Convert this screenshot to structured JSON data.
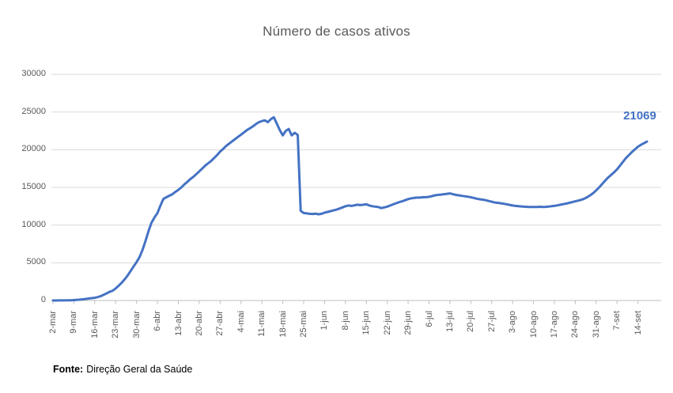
{
  "chart_data": {
    "type": "line",
    "title": "Número de casos ativos",
    "series_name": "casos ativos",
    "line_color": "#4472C4",
    "grid": true,
    "legend": "none",
    "ylim": [
      0,
      30000
    ],
    "y_ticks": [
      0,
      5000,
      10000,
      15000,
      20000,
      25000,
      30000
    ],
    "x_tick_every_n_points": 7,
    "x_tick_labels": [
      "2-mar",
      "9-mar",
      "16-mar",
      "23-mar",
      "30-mar",
      "6-abr",
      "13-abr",
      "20-abr",
      "27-abr",
      "4-mai",
      "11-mai",
      "18-mai",
      "25-mai",
      "1-jun",
      "8-jun",
      "15-jun",
      "22-jun",
      "29-jun",
      "6-jul",
      "13-jul",
      "20-jul",
      "27-jul",
      "3-ago",
      "10-ago",
      "17-ago",
      "24-ago",
      "31-ago",
      "7-set",
      "14-set"
    ],
    "end_label": "21069",
    "values": [
      2,
      3,
      6,
      10,
      15,
      22,
      35,
      55,
      80,
      120,
      160,
      210,
      260,
      310,
      360,
      450,
      580,
      760,
      950,
      1150,
      1300,
      1600,
      1950,
      2350,
      2800,
      3300,
      3900,
      4500,
      5100,
      5750,
      6700,
      7900,
      9200,
      10300,
      11000,
      11600,
      12600,
      13470,
      13700,
      13900,
      14100,
      14400,
      14670,
      15000,
      15400,
      15720,
      16100,
      16400,
      16750,
      17120,
      17500,
      17900,
      18200,
      18500,
      18900,
      19300,
      19740,
      20100,
      20500,
      20800,
      21100,
      21400,
      21700,
      22000,
      22300,
      22600,
      22850,
      23100,
      23400,
      23650,
      23800,
      23900,
      23650,
      24050,
      24300,
      23450,
      22600,
      21900,
      22500,
      22750,
      21900,
      22250,
      21950,
      11900,
      11600,
      11550,
      11500,
      11480,
      11520,
      11430,
      11500,
      11650,
      11750,
      11850,
      11950,
      12050,
      12200,
      12350,
      12500,
      12600,
      12550,
      12620,
      12700,
      12650,
      12700,
      12750,
      12600,
      12500,
      12450,
      12400,
      12250,
      12350,
      12450,
      12600,
      12750,
      12900,
      13050,
      13150,
      13300,
      13450,
      13550,
      13600,
      13650,
      13650,
      13700,
      13700,
      13750,
      13850,
      13950,
      14000,
      14050,
      14100,
      14150,
      14200,
      14100,
      14000,
      13950,
      13880,
      13820,
      13760,
      13700,
      13600,
      13500,
      13430,
      13370,
      13300,
      13200,
      13100,
      13000,
      12950,
      12900,
      12830,
      12770,
      12680,
      12600,
      12550,
      12500,
      12470,
      12440,
      12420,
      12410,
      12400,
      12410,
      12430,
      12400,
      12420,
      12450,
      12500,
      12550,
      12620,
      12700,
      12780,
      12860,
      12950,
      13050,
      13150,
      13250,
      13350,
      13500,
      13700,
      13950,
      14250,
      14600,
      15000,
      15450,
      15900,
      16300,
      16650,
      17000,
      17400,
      17900,
      18400,
      18900,
      19300,
      19700,
      20050,
      20400,
      20650,
      20850,
      21069
    ]
  },
  "source": {
    "prefix": "Fonte:",
    "text": "Direção Geral da Saúde"
  },
  "colors": {
    "accent": "#4472C4",
    "text_muted": "#595959",
    "grid": "#D9D9D9",
    "axis": "#BFBFBF"
  }
}
